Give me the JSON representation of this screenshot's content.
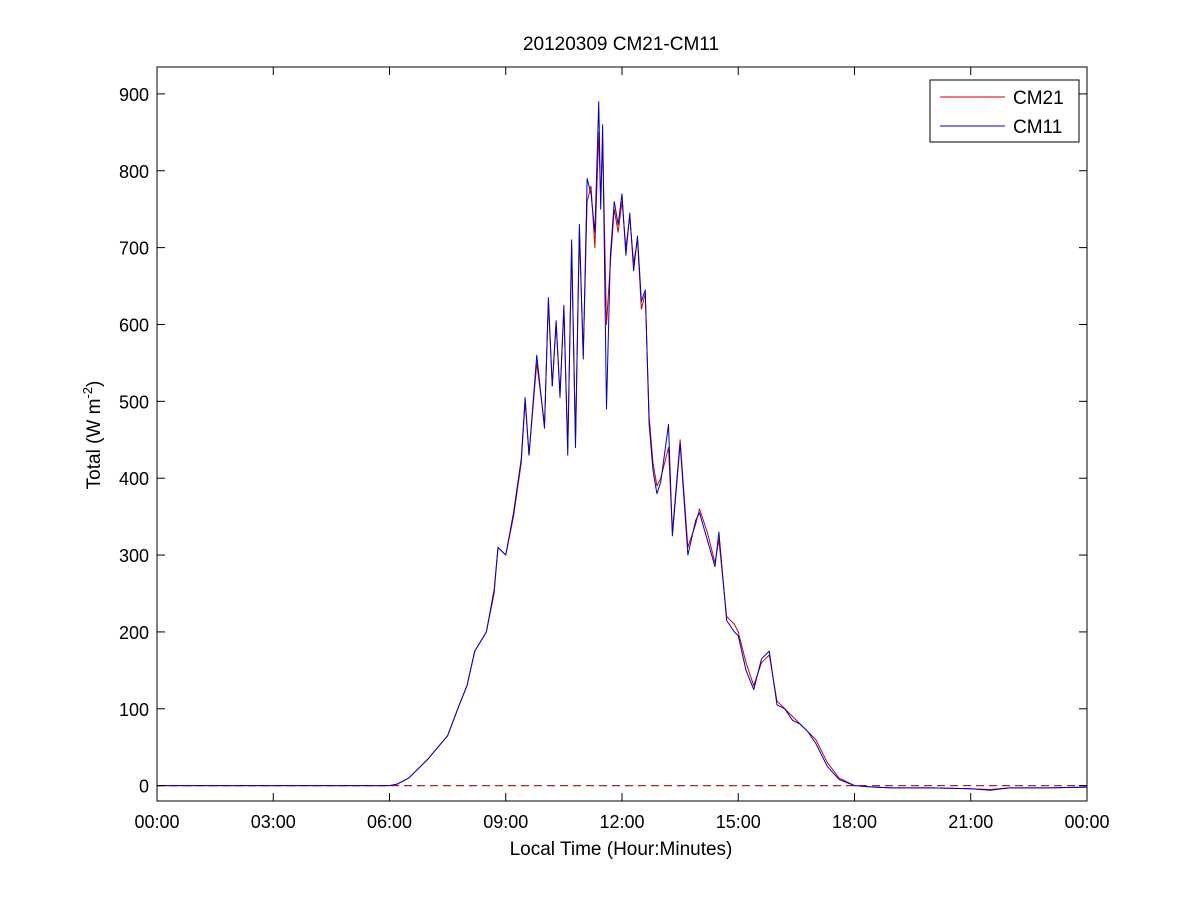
{
  "chart_data": {
    "type": "line",
    "title": "20120309 CM21-CM11",
    "xlabel": "Local Time (Hour:Minutes)",
    "ylabel": {
      "prefix": "Total (W m",
      "superscript": "-2",
      "suffix": ")"
    },
    "xlim": [
      0,
      24
    ],
    "ylim": [
      -20,
      935
    ],
    "x_ticks": [
      {
        "value": 0,
        "label": "00:00"
      },
      {
        "value": 3,
        "label": "03:00"
      },
      {
        "value": 6,
        "label": "06:00"
      },
      {
        "value": 9,
        "label": "09:00"
      },
      {
        "value": 12,
        "label": "12:00"
      },
      {
        "value": 15,
        "label": "15:00"
      },
      {
        "value": 18,
        "label": "18:00"
      },
      {
        "value": 21,
        "label": "21:00"
      },
      {
        "value": 24,
        "label": "00:00"
      }
    ],
    "y_ticks": [
      {
        "value": 0,
        "label": "0"
      },
      {
        "value": 100,
        "label": "100"
      },
      {
        "value": 200,
        "label": "200"
      },
      {
        "value": 300,
        "label": "300"
      },
      {
        "value": 400,
        "label": "400"
      },
      {
        "value": 500,
        "label": "500"
      },
      {
        "value": 600,
        "label": "600"
      },
      {
        "value": 700,
        "label": "700"
      },
      {
        "value": 800,
        "label": "800"
      },
      {
        "value": 900,
        "label": "900"
      }
    ],
    "grid": false,
    "legend_position": "top-right",
    "reference_line": {
      "y": 0,
      "style": "dashed",
      "color": "#a52a2a"
    },
    "series": [
      {
        "name": "CM21",
        "color": "#cc0000",
        "x": [
          0,
          3,
          6,
          6.2,
          6.5,
          7,
          7.5,
          7.8,
          8.0,
          8.2,
          8.5,
          8.7,
          8.8,
          9.0,
          9.2,
          9.4,
          9.5,
          9.6,
          9.8,
          10.0,
          10.1,
          10.2,
          10.3,
          10.4,
          10.5,
          10.6,
          10.7,
          10.8,
          10.9,
          11.0,
          11.1,
          11.2,
          11.3,
          11.4,
          11.45,
          11.5,
          11.6,
          11.7,
          11.8,
          11.9,
          12.0,
          12.1,
          12.2,
          12.3,
          12.4,
          12.5,
          12.6,
          12.7,
          12.8,
          12.9,
          13.0,
          13.2,
          13.3,
          13.5,
          13.7,
          13.9,
          14.0,
          14.2,
          14.4,
          14.5,
          14.7,
          14.9,
          15.0,
          15.2,
          15.4,
          15.6,
          15.8,
          16.0,
          16.2,
          16.4,
          16.6,
          16.8,
          17.0,
          17.3,
          17.6,
          18.0,
          18.5,
          19,
          20,
          21,
          21.5,
          22,
          23,
          24
        ],
        "y": [
          0,
          0,
          0,
          2,
          10,
          35,
          65,
          105,
          130,
          175,
          200,
          250,
          310,
          300,
          350,
          420,
          500,
          430,
          550,
          470,
          630,
          520,
          600,
          510,
          620,
          440,
          700,
          450,
          720,
          560,
          760,
          780,
          700,
          850,
          760,
          840,
          600,
          680,
          750,
          720,
          760,
          700,
          740,
          680,
          710,
          620,
          640,
          480,
          420,
          390,
          400,
          440,
          330,
          450,
          310,
          340,
          360,
          330,
          290,
          320,
          220,
          210,
          200,
          160,
          130,
          160,
          170,
          110,
          100,
          90,
          80,
          70,
          60,
          30,
          10,
          0,
          -2,
          -3,
          -3,
          -4,
          -5,
          -3,
          -3,
          -2
        ]
      },
      {
        "name": "CM11",
        "color": "#0000cc",
        "x": [
          0,
          3,
          6,
          6.2,
          6.5,
          7,
          7.5,
          7.8,
          8.0,
          8.2,
          8.5,
          8.7,
          8.8,
          9.0,
          9.2,
          9.4,
          9.5,
          9.6,
          9.8,
          10.0,
          10.1,
          10.2,
          10.3,
          10.4,
          10.5,
          10.6,
          10.7,
          10.8,
          10.9,
          11.0,
          11.1,
          11.2,
          11.3,
          11.4,
          11.45,
          11.5,
          11.6,
          11.7,
          11.8,
          11.9,
          12.0,
          12.1,
          12.2,
          12.3,
          12.4,
          12.5,
          12.6,
          12.7,
          12.8,
          12.9,
          13.0,
          13.2,
          13.3,
          13.5,
          13.7,
          13.9,
          14.0,
          14.2,
          14.4,
          14.5,
          14.7,
          14.9,
          15.0,
          15.2,
          15.4,
          15.6,
          15.8,
          16.0,
          16.2,
          16.4,
          16.6,
          16.8,
          17.0,
          17.3,
          17.6,
          18.0,
          18.5,
          19,
          20,
          21,
          21.5,
          22,
          23,
          24
        ],
        "y": [
          0,
          0,
          0,
          2,
          10,
          35,
          65,
          105,
          130,
          175,
          200,
          255,
          310,
          300,
          355,
          425,
          505,
          430,
          560,
          465,
          635,
          520,
          605,
          505,
          625,
          430,
          710,
          440,
          730,
          555,
          790,
          770,
          720,
          890,
          750,
          860,
          490,
          690,
          760,
          730,
          770,
          690,
          745,
          670,
          715,
          630,
          645,
          470,
          410,
          380,
          395,
          470,
          325,
          445,
          300,
          345,
          355,
          320,
          285,
          330,
          215,
          200,
          195,
          150,
          125,
          165,
          175,
          105,
          100,
          85,
          80,
          70,
          55,
          25,
          8,
          0,
          -2,
          -3,
          -3,
          -4,
          -6,
          -3,
          -3,
          -2
        ]
      }
    ]
  }
}
